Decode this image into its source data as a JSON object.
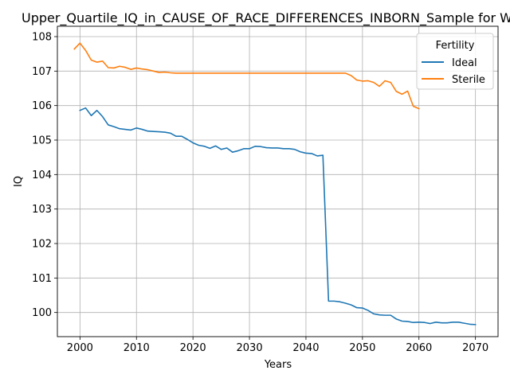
{
  "chart_data": {
    "type": "line",
    "title": "Upper_Quartile_IQ_in_CAUSE_OF_RACE_DIFFERENCES_INBORN_Sample for W",
    "xlabel": "Years",
    "ylabel": "IQ",
    "xlim": [
      1996,
      2074
    ],
    "ylim": [
      99.3,
      108.3
    ],
    "xticks": [
      2000,
      2010,
      2020,
      2030,
      2040,
      2050,
      2060,
      2070
    ],
    "yticks": [
      100,
      101,
      102,
      103,
      104,
      105,
      106,
      107,
      108
    ],
    "grid": true,
    "legend": {
      "title": "Fertility",
      "placement": "top-right",
      "entries": [
        "Ideal",
        "Sterile"
      ]
    },
    "series": [
      {
        "name": "Ideal",
        "color": "#1f77b4",
        "x": [
          2000,
          2001,
          2002,
          2003,
          2004,
          2005,
          2006,
          2007,
          2008,
          2009,
          2010,
          2011,
          2012,
          2013,
          2014,
          2015,
          2016,
          2017,
          2018,
          2019,
          2020,
          2021,
          2022,
          2023,
          2024,
          2025,
          2026,
          2027,
          2028,
          2029,
          2030,
          2031,
          2032,
          2033,
          2034,
          2035,
          2036,
          2037,
          2038,
          2039,
          2040,
          2041,
          2042,
          2043,
          2044,
          2045,
          2046,
          2047,
          2048,
          2049,
          2050,
          2051,
          2052,
          2053,
          2054,
          2055,
          2056,
          2057,
          2058,
          2059,
          2060,
          2061,
          2062,
          2063,
          2064,
          2065,
          2066,
          2067,
          2068,
          2069,
          2070
        ],
        "values": [
          105.86,
          105.93,
          105.71,
          105.86,
          105.68,
          105.44,
          105.39,
          105.33,
          105.31,
          105.29,
          105.35,
          105.31,
          105.26,
          105.25,
          105.24,
          105.23,
          105.2,
          105.11,
          105.11,
          105.02,
          104.92,
          104.85,
          104.82,
          104.76,
          104.83,
          104.73,
          104.77,
          104.65,
          104.69,
          104.75,
          104.75,
          104.82,
          104.81,
          104.78,
          104.77,
          104.77,
          104.75,
          104.75,
          104.73,
          104.66,
          104.62,
          104.61,
          104.54,
          104.56,
          100.33,
          100.33,
          100.31,
          100.27,
          100.22,
          100.14,
          100.13,
          100.06,
          99.96,
          99.93,
          99.92,
          99.92,
          99.81,
          99.75,
          99.74,
          99.71,
          99.72,
          99.71,
          99.68,
          99.72,
          99.7,
          99.7,
          99.72,
          99.72,
          99.69,
          99.66,
          99.65
        ]
      },
      {
        "name": "Sterile",
        "color": "#ff7f0e",
        "x": [
          1999,
          2000,
          2001,
          2002,
          2003,
          2004,
          2005,
          2006,
          2007,
          2008,
          2009,
          2010,
          2011,
          2012,
          2013,
          2014,
          2015,
          2016,
          2017,
          2018,
          2019,
          2020,
          2021,
          2022,
          2023,
          2024,
          2025,
          2026,
          2027,
          2028,
          2029,
          2030,
          2031,
          2032,
          2033,
          2034,
          2035,
          2036,
          2037,
          2038,
          2039,
          2040,
          2041,
          2042,
          2043,
          2044,
          2045,
          2046,
          2047,
          2048,
          2049,
          2050,
          2051,
          2052,
          2053,
          2054,
          2055,
          2056,
          2057,
          2058,
          2059,
          2060
        ],
        "values": [
          107.64,
          107.81,
          107.6,
          107.32,
          107.26,
          107.29,
          107.1,
          107.09,
          107.14,
          107.11,
          107.05,
          107.09,
          107.06,
          107.04,
          107.0,
          106.96,
          106.97,
          106.95,
          106.94,
          106.94,
          106.94,
          106.94,
          106.94,
          106.94,
          106.94,
          106.94,
          106.94,
          106.94,
          106.94,
          106.94,
          106.94,
          106.94,
          106.94,
          106.94,
          106.94,
          106.94,
          106.94,
          106.94,
          106.94,
          106.94,
          106.94,
          106.94,
          106.94,
          106.94,
          106.94,
          106.94,
          106.94,
          106.94,
          106.94,
          106.87,
          106.74,
          106.71,
          106.72,
          106.67,
          106.56,
          106.72,
          106.67,
          106.41,
          106.33,
          106.42,
          105.98,
          105.91
        ]
      }
    ]
  }
}
